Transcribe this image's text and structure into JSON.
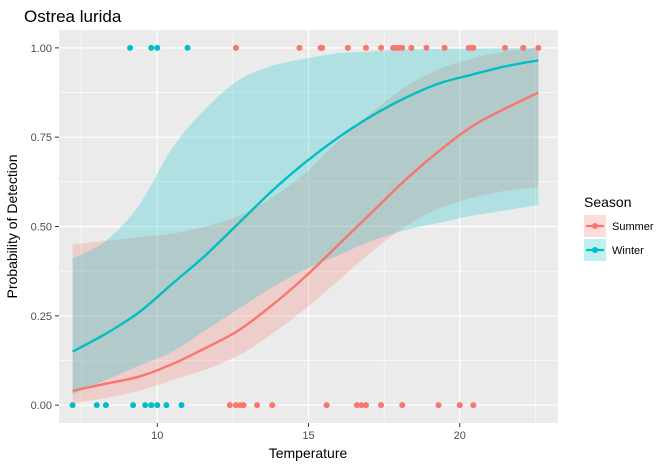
{
  "chart_data": {
    "type": "line",
    "title": "Ostrea lurida",
    "xlabel": "Temperature",
    "ylabel": "Probability of Detection",
    "xlim": [
      6.75,
      23.25
    ],
    "ylim": [
      -0.05,
      1.05
    ],
    "xticks": [
      10,
      15,
      20
    ],
    "yticks": [
      0,
      0.25,
      0.5,
      0.75,
      1.0
    ],
    "ytick_labels": [
      "0.00",
      "0.25",
      "0.50",
      "0.75",
      "1.00"
    ],
    "grid": true,
    "legend": {
      "title": "Season",
      "position": "right"
    },
    "series": [
      {
        "name": "Summer",
        "color": "#F8766D",
        "x": [
          7.2,
          8.3,
          9.4,
          10.5,
          11.6,
          12.7,
          13.8,
          14.9,
          16.0,
          17.1,
          18.2,
          19.3,
          20.4,
          21.5,
          22.6
        ],
        "y": [
          0.04,
          0.06,
          0.08,
          0.115,
          0.16,
          0.21,
          0.28,
          0.36,
          0.45,
          0.54,
          0.63,
          0.71,
          0.78,
          0.83,
          0.875
        ],
        "ci_low": [
          0.005,
          0.02,
          0.04,
          0.07,
          0.1,
          0.14,
          0.2,
          0.27,
          0.35,
          0.43,
          0.5,
          0.55,
          0.58,
          0.6,
          0.61
        ],
        "ci_high": [
          0.45,
          0.46,
          0.47,
          0.48,
          0.5,
          0.53,
          0.58,
          0.65,
          0.74,
          0.82,
          0.89,
          0.94,
          0.97,
          0.99,
          1.0
        ],
        "points": [
          [
            12.6,
            1
          ],
          [
            14.7,
            1
          ],
          [
            15.4,
            1
          ],
          [
            15.45,
            1
          ],
          [
            16.3,
            1
          ],
          [
            16.9,
            1
          ],
          [
            17.4,
            1
          ],
          [
            17.8,
            1
          ],
          [
            17.9,
            1
          ],
          [
            18.0,
            1
          ],
          [
            18.1,
            1
          ],
          [
            18.4,
            1
          ],
          [
            18.9,
            1
          ],
          [
            19.5,
            1
          ],
          [
            20.3,
            1
          ],
          [
            20.4,
            1
          ],
          [
            20.45,
            1
          ],
          [
            21.5,
            1
          ],
          [
            22.1,
            1
          ],
          [
            22.6,
            1
          ],
          [
            12.4,
            0
          ],
          [
            12.6,
            0
          ],
          [
            12.75,
            0
          ],
          [
            12.85,
            0
          ],
          [
            13.3,
            0
          ],
          [
            13.8,
            0
          ],
          [
            15.6,
            0
          ],
          [
            16.6,
            0
          ],
          [
            16.75,
            0
          ],
          [
            16.9,
            0
          ],
          [
            17.4,
            0
          ],
          [
            18.1,
            0
          ],
          [
            19.3,
            0
          ],
          [
            20.0,
            0
          ],
          [
            20.45,
            0
          ]
        ]
      },
      {
        "name": "Winter",
        "color": "#00BFC4",
        "x": [
          7.2,
          8.3,
          9.4,
          10.5,
          11.6,
          12.7,
          13.8,
          14.9,
          16.0,
          17.1,
          18.2,
          19.3,
          20.4,
          21.5,
          22.6
        ],
        "y": [
          0.15,
          0.2,
          0.26,
          0.34,
          0.42,
          0.51,
          0.6,
          0.68,
          0.75,
          0.81,
          0.86,
          0.9,
          0.925,
          0.948,
          0.965
        ],
        "ci_low": [
          0.03,
          0.07,
          0.11,
          0.15,
          0.21,
          0.27,
          0.33,
          0.38,
          0.42,
          0.46,
          0.49,
          0.51,
          0.53,
          0.545,
          0.56
        ],
        "ci_high": [
          0.41,
          0.46,
          0.56,
          0.72,
          0.83,
          0.91,
          0.95,
          0.97,
          0.985,
          0.99,
          0.995,
          0.997,
          0.998,
          0.999,
          1.0
        ],
        "points": [
          [
            9.1,
            1
          ],
          [
            9.8,
            1
          ],
          [
            10.0,
            1
          ],
          [
            11.0,
            1
          ],
          [
            7.2,
            0
          ],
          [
            8.0,
            0
          ],
          [
            8.3,
            0
          ],
          [
            9.2,
            0
          ],
          [
            9.6,
            0
          ],
          [
            9.8,
            0
          ],
          [
            10.0,
            0
          ],
          [
            10.3,
            0
          ],
          [
            10.8,
            0
          ]
        ]
      }
    ]
  }
}
